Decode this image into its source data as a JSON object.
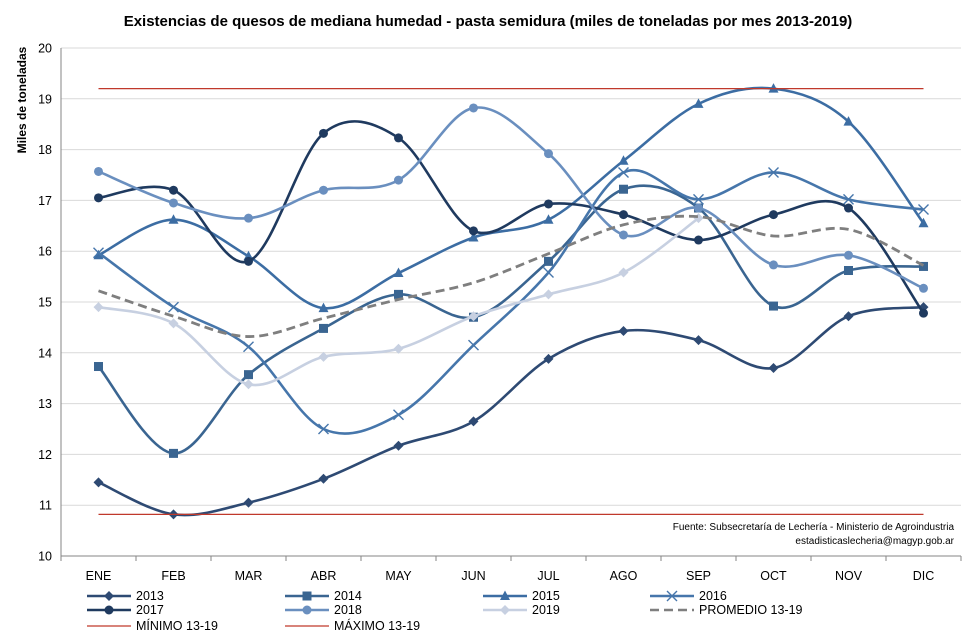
{
  "chart_data": {
    "type": "line",
    "title": "Existencias de quesos de mediana humedad - pasta semidura (miles de toneladas por mes 2013-2019)",
    "ylabel": "Miles de toneladas",
    "xlabel": "",
    "ylim": [
      10,
      20
    ],
    "yticks": [
      10,
      11,
      12,
      13,
      14,
      15,
      16,
      17,
      18,
      19,
      20
    ],
    "categories": [
      "ENE",
      "FEB",
      "MAR",
      "ABR",
      "MAY",
      "JUN",
      "JUL",
      "AGO",
      "SEP",
      "OCT",
      "NOV",
      "DIC"
    ],
    "grid": "horizontal",
    "legend_position": "bottom",
    "source_line1": "Fuente: Subsecretaría de Lechería - Ministerio de Agroindustria",
    "source_line2": "estadisticaslecheria@magyp.gob.ar",
    "series": [
      {
        "name": "2013",
        "color": "#2e4a73",
        "marker": "diamond",
        "dash": "none",
        "values": [
          11.45,
          10.82,
          11.05,
          11.52,
          12.17,
          12.65,
          13.88,
          14.43,
          14.25,
          13.7,
          14.72,
          14.9
        ]
      },
      {
        "name": "2014",
        "color": "#3a6591",
        "marker": "square",
        "dash": "none",
        "values": [
          13.73,
          12.02,
          13.57,
          14.48,
          15.15,
          14.7,
          15.8,
          17.22,
          16.85,
          14.92,
          15.62,
          15.7
        ]
      },
      {
        "name": "2015",
        "color": "#3c6da3",
        "marker": "triangle",
        "dash": "none",
        "values": [
          15.92,
          16.62,
          15.9,
          14.88,
          15.57,
          16.27,
          16.62,
          17.78,
          18.9,
          19.2,
          18.55,
          16.55
        ]
      },
      {
        "name": "2016",
        "color": "#4676ab",
        "marker": "x",
        "dash": "none",
        "values": [
          15.97,
          14.9,
          14.12,
          12.5,
          12.78,
          14.15,
          15.58,
          17.55,
          17.02,
          17.55,
          17.02,
          16.82
        ]
      },
      {
        "name": "2017",
        "color": "#1f3a5f",
        "marker": "circle",
        "dash": "none",
        "values": [
          17.05,
          17.2,
          15.8,
          18.32,
          18.23,
          16.4,
          16.93,
          16.72,
          16.22,
          16.72,
          16.85,
          14.78
        ]
      },
      {
        "name": "2018",
        "color": "#6a8fbf",
        "marker": "circle",
        "dash": "none",
        "values": [
          17.57,
          16.95,
          16.65,
          17.2,
          17.4,
          18.82,
          17.92,
          16.32,
          16.85,
          15.73,
          15.92,
          15.27
        ]
      },
      {
        "name": "2019",
        "color": "#c7d0e1",
        "marker": "diamond",
        "dash": "none",
        "values": [
          14.9,
          14.58,
          13.38,
          13.92,
          14.08,
          14.72,
          15.15,
          15.58,
          16.65,
          null,
          null,
          null
        ]
      },
      {
        "name": "PROMEDIO 13-19",
        "color": "#7f7f7f",
        "marker": "none",
        "dash": "dashed",
        "values": [
          15.22,
          14.72,
          14.32,
          14.68,
          15.05,
          15.38,
          15.95,
          16.52,
          16.68,
          16.3,
          16.43,
          15.72
        ]
      },
      {
        "name": "MÍNIMO 13-19",
        "color": "#c0392b",
        "marker": "none",
        "dash": "none",
        "values": [
          10.82,
          10.82,
          10.82,
          10.82,
          10.82,
          10.82,
          10.82,
          10.82,
          10.82,
          10.82,
          10.82,
          10.82
        ]
      },
      {
        "name": "MÁXIMO 13-19",
        "color": "#c0392b",
        "marker": "none",
        "dash": "none",
        "values": [
          19.2,
          19.2,
          19.2,
          19.2,
          19.2,
          19.2,
          19.2,
          19.2,
          19.2,
          19.2,
          19.2,
          19.2
        ]
      }
    ]
  }
}
